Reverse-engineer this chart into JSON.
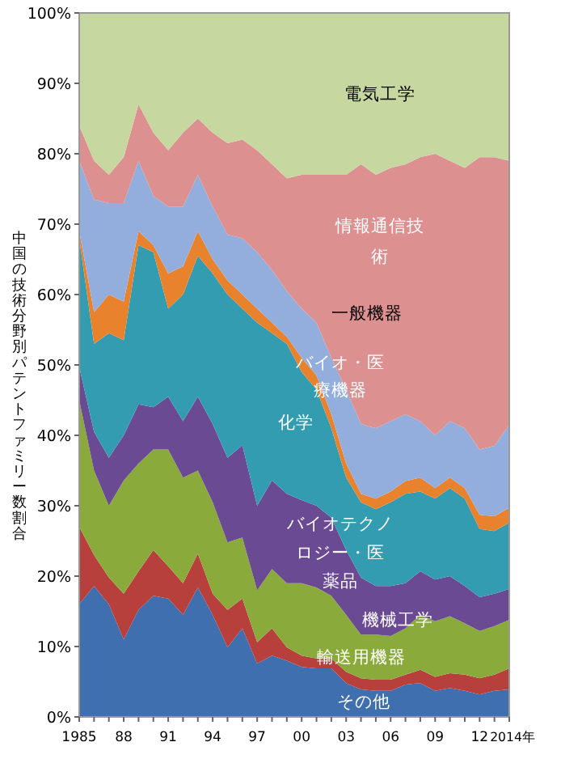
{
  "chart_data": {
    "type": "area",
    "stacked": true,
    "ylabel": "中国の技術分野別パテントファミリー数割合",
    "x": [
      1985,
      1986,
      1987,
      1988,
      1989,
      1990,
      1991,
      1992,
      1993,
      1994,
      1995,
      1996,
      1997,
      1998,
      1999,
      2000,
      2001,
      2002,
      2003,
      2004,
      2005,
      2006,
      2007,
      2008,
      2009,
      2010,
      2011,
      2012,
      2013,
      2014
    ],
    "xlim": [
      1985,
      2014
    ],
    "xticks": [
      {
        "value": 1985,
        "label": "1985"
      },
      {
        "value": 1986,
        "label": null
      },
      {
        "value": 1987,
        "label": null
      },
      {
        "value": 1988,
        "label": "88"
      },
      {
        "value": 1989,
        "label": null
      },
      {
        "value": 1990,
        "label": null
      },
      {
        "value": 1991,
        "label": "91"
      },
      {
        "value": 1992,
        "label": null
      },
      {
        "value": 1993,
        "label": null
      },
      {
        "value": 1994,
        "label": "94"
      },
      {
        "value": 1995,
        "label": null
      },
      {
        "value": 1996,
        "label": null
      },
      {
        "value": 1997,
        "label": "97"
      },
      {
        "value": 1998,
        "label": null
      },
      {
        "value": 1999,
        "label": null
      },
      {
        "value": 2000,
        "label": "00"
      },
      {
        "value": 2001,
        "label": null
      },
      {
        "value": 2002,
        "label": null
      },
      {
        "value": 2003,
        "label": "03"
      },
      {
        "value": 2004,
        "label": null
      },
      {
        "value": 2005,
        "label": null
      },
      {
        "value": 2006,
        "label": "06"
      },
      {
        "value": 2007,
        "label": null
      },
      {
        "value": 2008,
        "label": null
      },
      {
        "value": 2009,
        "label": "09"
      },
      {
        "value": 2010,
        "label": null
      },
      {
        "value": 2011,
        "label": null
      },
      {
        "value": 2012,
        "label": "12"
      },
      {
        "value": 2013,
        "label": null
      },
      {
        "value": 2014,
        "label": "2014年"
      }
    ],
    "ylim": [
      0,
      100
    ],
    "yticks": [
      {
        "value": 0,
        "label": "0%"
      },
      {
        "value": 10,
        "label": "10%"
      },
      {
        "value": 20,
        "label": "20%"
      },
      {
        "value": 30,
        "label": "30%"
      },
      {
        "value": 40,
        "label": "40%"
      },
      {
        "value": 50,
        "label": "50%"
      },
      {
        "value": 60,
        "label": "60%"
      },
      {
        "value": 70,
        "label": "70%"
      },
      {
        "value": 80,
        "label": "80%"
      },
      {
        "value": 90,
        "label": "90%"
      },
      {
        "value": 100,
        "label": "100%"
      }
    ],
    "legend": false,
    "grid": false,
    "series": [
      {
        "name": "その他",
        "color": "#3f6fae",
        "values": [
          16,
          18.6,
          16,
          11,
          15.2,
          17.2,
          16.8,
          14.5,
          18.4,
          14.5,
          9.9,
          12.6,
          7.6,
          8.7,
          8,
          7.1,
          6.9,
          6.9,
          4.8,
          3.9,
          3.7,
          3.7,
          4.6,
          4.8,
          3.7,
          4.1,
          3.7,
          3.2,
          3.7,
          3.9
        ]
      },
      {
        "name": "輸送用機器",
        "color": "#b8403c",
        "values": [
          11,
          4.4,
          3.8,
          6.5,
          5.5,
          6.5,
          4.6,
          4.5,
          4.8,
          3,
          5.3,
          4.2,
          3,
          3.9,
          1.9,
          1.6,
          1.4,
          1.4,
          1.6,
          1.6,
          1.6,
          1.6,
          1.4,
          1.9,
          2,
          2.1,
          2.3,
          2.3,
          2.3,
          3
        ]
      },
      {
        "name": "機械工学",
        "color": "#8aab3c",
        "values": [
          18,
          12,
          10.2,
          16.1,
          15.3,
          14.3,
          16.6,
          15,
          11.8,
          13,
          9.6,
          8.7,
          7.4,
          8.4,
          9.1,
          10.3,
          10.1,
          8.9,
          8.1,
          6.2,
          6.4,
          6.2,
          6.6,
          7.8,
          7.9,
          8.1,
          7.3,
          6.7,
          6.9,
          6.9
        ]
      },
      {
        "name": "バイオテクノロジー・医薬品",
        "color": "#6b4a94",
        "values": [
          4.7,
          5.5,
          6.8,
          6.4,
          8.4,
          6,
          7.5,
          8,
          10.5,
          11.1,
          12,
          13.1,
          12,
          12.6,
          12.7,
          11.8,
          11.6,
          11.1,
          9.2,
          8.1,
          6.9,
          7.1,
          6.4,
          6.2,
          5.9,
          5.7,
          5.3,
          4.8,
          4.6,
          4.4
        ]
      },
      {
        "name": "化学",
        "color": "#339cb1",
        "values": [
          18.3,
          12.5,
          17.7,
          13.5,
          22.6,
          22,
          12.5,
          18,
          20,
          21.4,
          23.2,
          19.4,
          26,
          20.9,
          21.3,
          18.2,
          16.5,
          12.7,
          10.3,
          10.7,
          10.9,
          11.9,
          12.7,
          11.3,
          11.5,
          12.5,
          12.4,
          9.7,
          8.9,
          9.4
        ]
      },
      {
        "name": "バイオ・医療機器",
        "color": "#e8822c",
        "values": [
          1,
          4.5,
          5.5,
          5.5,
          2,
          1,
          5,
          4,
          3.5,
          2,
          2,
          2,
          2,
          1.5,
          1,
          2,
          2,
          2,
          2,
          1.2,
          1.5,
          1.5,
          1.8,
          2,
          1.5,
          1.5,
          1.5,
          2,
          2.1,
          2.1
        ]
      },
      {
        "name": "一般機器",
        "color": "#93aedd",
        "values": [
          10,
          16,
          13,
          14,
          10,
          7,
          9.5,
          8.5,
          8,
          7.5,
          6.5,
          8,
          8,
          7.5,
          6.5,
          7,
          7.5,
          8,
          10.5,
          9.9,
          10,
          10,
          9.5,
          8,
          7.5,
          8,
          8.5,
          9.3,
          10,
          11.8
        ]
      },
      {
        "name": "情報通信技術",
        "color": "#dd9090",
        "values": [
          5,
          5.5,
          4,
          6.5,
          8,
          9,
          8,
          10.5,
          8,
          10.5,
          13,
          14,
          14.5,
          15,
          16,
          19,
          21,
          26,
          30.5,
          36.9,
          36,
          36,
          35.5,
          37.5,
          40,
          37,
          37,
          41.5,
          41,
          37.5
        ]
      },
      {
        "name": "電気工学",
        "color": "#c6d7a0",
        "values": [
          16,
          21,
          23,
          20.5,
          13,
          17,
          19.5,
          17,
          15,
          17,
          18.5,
          18,
          19.5,
          21.5,
          23.5,
          23,
          23,
          23,
          23,
          21.5,
          23,
          22,
          21.5,
          20.5,
          20,
          21,
          22,
          20.5,
          20.5,
          21
        ]
      }
    ]
  }
}
